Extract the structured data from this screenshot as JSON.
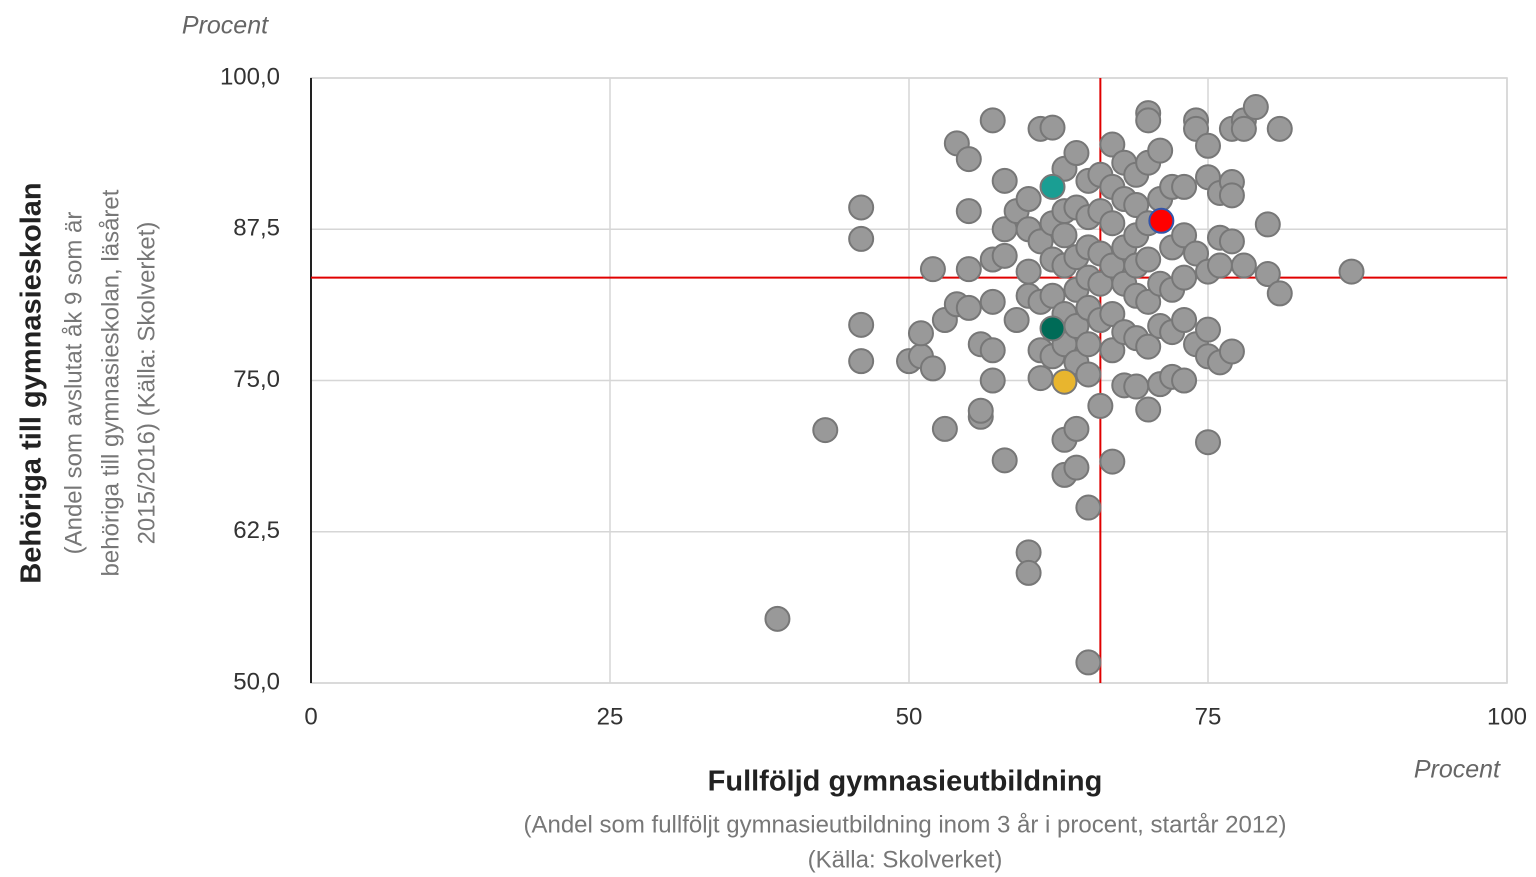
{
  "chart_data": {
    "type": "scatter",
    "y_unit": "Procent",
    "x_unit": "Procent",
    "y_title": "Behöriga till gymnasieskolan",
    "y_subtitle": [
      "(Andel som avslutat åk 9 som är",
      "behöriga till gymnasieskolan, läsåret",
      "2015/2016) (Källa: Skolverket)"
    ],
    "x_title": "Fullföljd gymnasieutbildning",
    "x_subtitle": [
      "(Andel som fullföljt gymnasieutbildning inom 3 år i procent, startår 2012)",
      "(Källa: Skolverket)"
    ],
    "xlim": [
      0,
      100
    ],
    "xticks": [
      0,
      25,
      50,
      75,
      100
    ],
    "ylim": [
      50,
      100
    ],
    "yticks": [
      {
        "value": 50,
        "label": "50,0"
      },
      {
        "value": 62.5,
        "label": "62,5"
      },
      {
        "value": 75,
        "label": "75,0"
      },
      {
        "value": 87.5,
        "label": "87,5"
      },
      {
        "value": 100,
        "label": "100,0"
      }
    ],
    "grid": true,
    "reference_lines": {
      "x": 66,
      "y": 83.5,
      "color": "#e00000"
    },
    "series": [
      {
        "color": "#999999",
        "edge": "#777777",
        "x": [
          39,
          43,
          46,
          46,
          46,
          46,
          50,
          51,
          51,
          52,
          52,
          53,
          53,
          54,
          54,
          55,
          55,
          55,
          55,
          56,
          56,
          56,
          57,
          57,
          57,
          57,
          57,
          58,
          58,
          58,
          58,
          59,
          59,
          60,
          60,
          60,
          60,
          60,
          60,
          61,
          61,
          61,
          61,
          61,
          62,
          62,
          62,
          62,
          62,
          63,
          63,
          63,
          63,
          63,
          63,
          63,
          63,
          64,
          64,
          64,
          64,
          64,
          64,
          64,
          64,
          65,
          65,
          65,
          65,
          65,
          65,
          65,
          65,
          65,
          66,
          66,
          66,
          66,
          66,
          66,
          67,
          67,
          67,
          67,
          67,
          67,
          67,
          68,
          68,
          68,
          68,
          68,
          68,
          69,
          69,
          69,
          69,
          69,
          69,
          69,
          70,
          70,
          70,
          70,
          70,
          70,
          70,
          70,
          71,
          71,
          71,
          71,
          71,
          72,
          72,
          72,
          72,
          72,
          73,
          73,
          73,
          73,
          73,
          74,
          74,
          74,
          74,
          75,
          75,
          75,
          75,
          75,
          75,
          76,
          76,
          76,
          76,
          77,
          77,
          77,
          77,
          77,
          78,
          78,
          78,
          79,
          80,
          80,
          81,
          81,
          87
        ],
        "y": [
          55.3,
          70.9,
          89.3,
          86.7,
          79.6,
          76.6,
          76.6,
          77,
          78.9,
          76,
          84.2,
          71,
          80,
          81.3,
          94.6,
          93.3,
          89,
          84.2,
          81,
          72,
          72.5,
          78,
          96.5,
          85,
          81.5,
          77.5,
          75,
          91.5,
          87.5,
          85.3,
          68.4,
          89,
          80,
          90,
          87.5,
          84,
          82,
          60.8,
          59.1,
          95.8,
          86.5,
          81.5,
          77.5,
          75.2,
          95.9,
          88,
          85,
          82,
          77,
          92.5,
          89,
          87,
          84.5,
          80.5,
          78,
          70.1,
          67.2,
          93.8,
          89.3,
          85.2,
          82.5,
          79.5,
          76.5,
          71,
          67.8,
          91.5,
          88.5,
          86,
          83.5,
          81,
          78,
          75.5,
          64.5,
          51.7,
          92,
          89,
          85.5,
          83,
          80,
          72.9,
          94.5,
          91,
          88,
          84.5,
          80.5,
          77.5,
          68.3,
          93,
          90,
          86,
          83,
          79,
          74.6,
          92,
          89.5,
          87,
          84.5,
          82,
          78.5,
          74.5,
          97.1,
          96.5,
          93,
          88,
          85,
          81.5,
          77.8,
          72.6,
          94,
          90,
          83,
          79.5,
          74.7,
          91,
          86,
          82.5,
          79,
          75.3,
          91,
          87,
          83.5,
          80,
          75,
          96.5,
          95.8,
          85.5,
          78,
          94.4,
          91.8,
          84,
          79.2,
          77,
          69.9,
          90.5,
          86.8,
          84.5,
          76.5,
          95.8,
          91.4,
          90.3,
          86.5,
          77.4,
          96.5,
          95.8,
          84.5,
          97.6,
          87.9,
          83.8,
          95.8,
          82.2,
          84
        ]
      },
      {
        "color": "#1a9e93",
        "edge": "#777777",
        "x": [
          62
        ],
        "y": [
          91
        ]
      },
      {
        "color": "#ff0000",
        "edge": "#3355aa",
        "x": [
          71.1
        ],
        "y": [
          88.2
        ]
      },
      {
        "color": "#006b57",
        "edge": "#777777",
        "x": [
          62
        ],
        "y": [
          79.3
        ]
      },
      {
        "color": "#e8b52e",
        "edge": "#777777",
        "x": [
          63
        ],
        "y": [
          74.9
        ]
      }
    ]
  }
}
